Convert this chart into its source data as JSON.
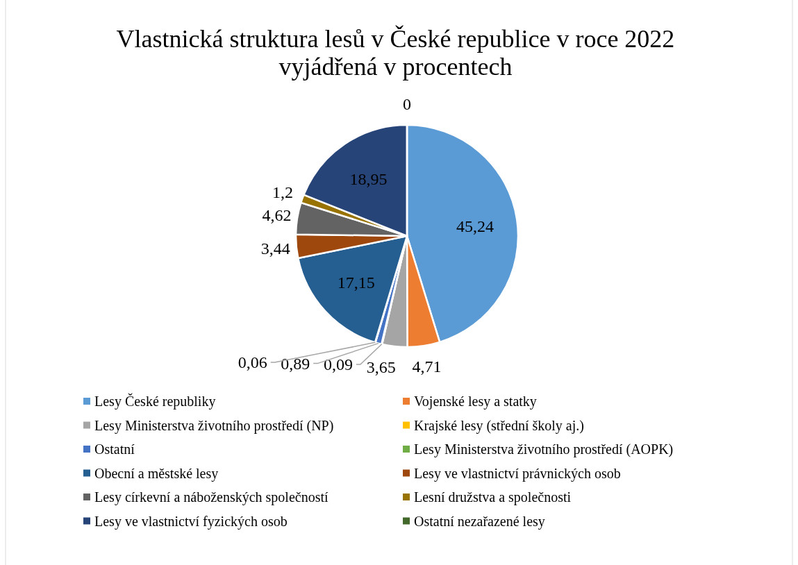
{
  "chart_data": {
    "type": "pie",
    "title": "Vlastnická struktura lesů v České republice v roce 2022 vyjádřená v procentech",
    "categories": [
      "Lesy České republiky",
      "Vojenské lesy a statky",
      "Lesy Ministerstva životního prostředí (NP)",
      "Krajské lesy (střední školy aj.)",
      "Ostatní",
      "Lesy Ministerstva životního prostředí (AOPK)",
      "Obecní a městské lesy",
      "Lesy ve vlastnictví právnických osob",
      "Lesy církevní a náboženských společností",
      "Lesní družstva a společnosti",
      "Lesy ve vlastnictví fyzických osob",
      "Ostatní nezařazené lesy"
    ],
    "values": [
      45.24,
      4.71,
      3.65,
      0.09,
      0.89,
      0.06,
      17.15,
      3.44,
      4.62,
      1.2,
      18.95,
      0
    ],
    "value_labels": [
      "45,24",
      "4,71",
      "3,65",
      "0,09",
      "0,89",
      "0,06",
      "17,15",
      "3,44",
      "4,62",
      "1,2",
      "18,95",
      "0"
    ],
    "colors": [
      "#5b9bd5",
      "#ed7d31",
      "#a5a5a5",
      "#ffc000",
      "#4472c4",
      "#70ad47",
      "#255e91",
      "#9e480e",
      "#636363",
      "#997300",
      "#264478",
      "#43682b"
    ],
    "legend": "bottom"
  }
}
